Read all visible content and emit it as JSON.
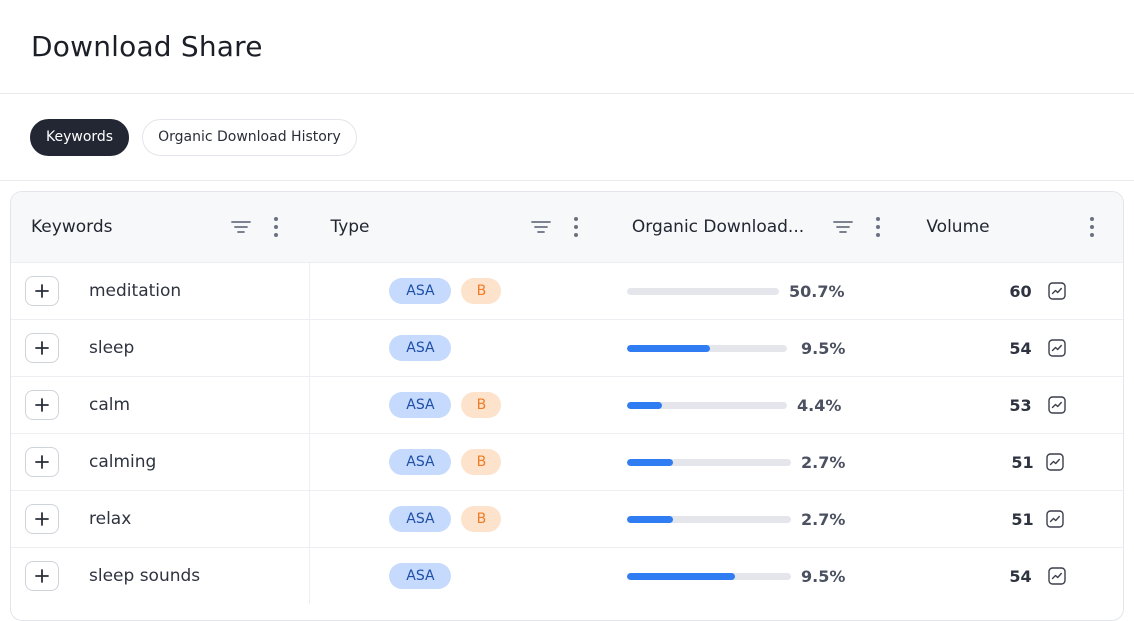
{
  "header": {
    "title": "Download Share"
  },
  "tabs": [
    {
      "label": "Keywords",
      "active": true
    },
    {
      "label": "Organic Download History",
      "active": false
    }
  ],
  "table": {
    "columns": {
      "keywords": "Keywords",
      "type": "Type",
      "organic": "Organic Download...",
      "volume": "Volume"
    },
    "rows": [
      {
        "keyword": "meditation",
        "asa": "ASA",
        "b": "B",
        "share": 50.7,
        "share_label": "50.7%",
        "volume": "60"
      },
      {
        "keyword": "sleep",
        "asa": "ASA",
        "b": "",
        "share": 9.5,
        "share_label": "9.5%",
        "volume": "54"
      },
      {
        "keyword": "calm",
        "asa": "ASA",
        "b": "B",
        "share": 4.4,
        "share_label": "4.4%",
        "volume": "53"
      },
      {
        "keyword": "calming",
        "asa": "ASA",
        "b": "B",
        "share": 2.7,
        "share_label": "2.7%",
        "volume": "51"
      },
      {
        "keyword": "relax",
        "asa": "ASA",
        "b": "B",
        "share": 2.7,
        "share_label": "2.7%",
        "volume": "51"
      },
      {
        "keyword": "sleep sounds",
        "asa": "ASA",
        "b": "",
        "share": 9.5,
        "share_label": "9.5%",
        "volume": "54"
      }
    ]
  },
  "colors": {
    "active_tab_bg": "#232734",
    "bar_fill": "#2f7cf3",
    "bar_track": "#e4e6eb",
    "asa_badge_bg": "#c6dafd",
    "b_badge_bg": "#fde3cc"
  },
  "icons": {
    "filter": "filter-lines-icon",
    "menu": "vertical-dots-icon",
    "expand": "plus-icon",
    "trend": "trend-chart-icon"
  }
}
